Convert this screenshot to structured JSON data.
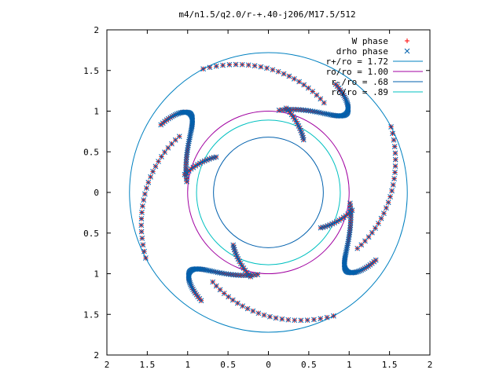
{
  "chart_data": {
    "type": "scatter",
    "title": "m4/n1.5/q2.0/r-+.40-j206/M17.5/512",
    "xlabel": "",
    "ylabel": "",
    "xlim": [
      -2,
      2
    ],
    "ylim": [
      -2,
      2
    ],
    "x_tick_labels": [
      "2",
      "1.5",
      "1",
      "0.5",
      "0",
      "0.5",
      "1",
      "1.5",
      "2"
    ],
    "y_tick_labels": [
      "2",
      "1.5",
      "1",
      "0.5",
      "0",
      "0.5",
      "1",
      "1.5",
      "2"
    ],
    "legend_position": "top-right",
    "grid": false,
    "series": [
      {
        "name": "W phase",
        "kind": "points",
        "marker": "plus",
        "color": "#ff0000",
        "points": []
      },
      {
        "name": "drho phase",
        "kind": "points",
        "marker": "cross",
        "color": "#0060ad",
        "points": []
      },
      {
        "name": "r+/ro = 1.72",
        "kind": "circle",
        "radius": 1.72,
        "color": "#0080c0"
      },
      {
        "name": "ro/ro = 1.00",
        "kind": "circle",
        "radius": 1.0,
        "color": "#a000a0"
      },
      {
        "name": "r-/ro = .68",
        "kind": "circle",
        "radius": 0.68,
        "color": "#0060ad"
      },
      {
        "name": "rc/ro = .89",
        "kind": "circle",
        "radius": 0.89,
        "color": "#00c0c0"
      }
    ],
    "arms": {
      "count": 4,
      "description": "four spiral phase arms sampled at discrete points",
      "phase_offsets_deg": [
        18,
        108,
        198,
        288
      ]
    }
  }
}
